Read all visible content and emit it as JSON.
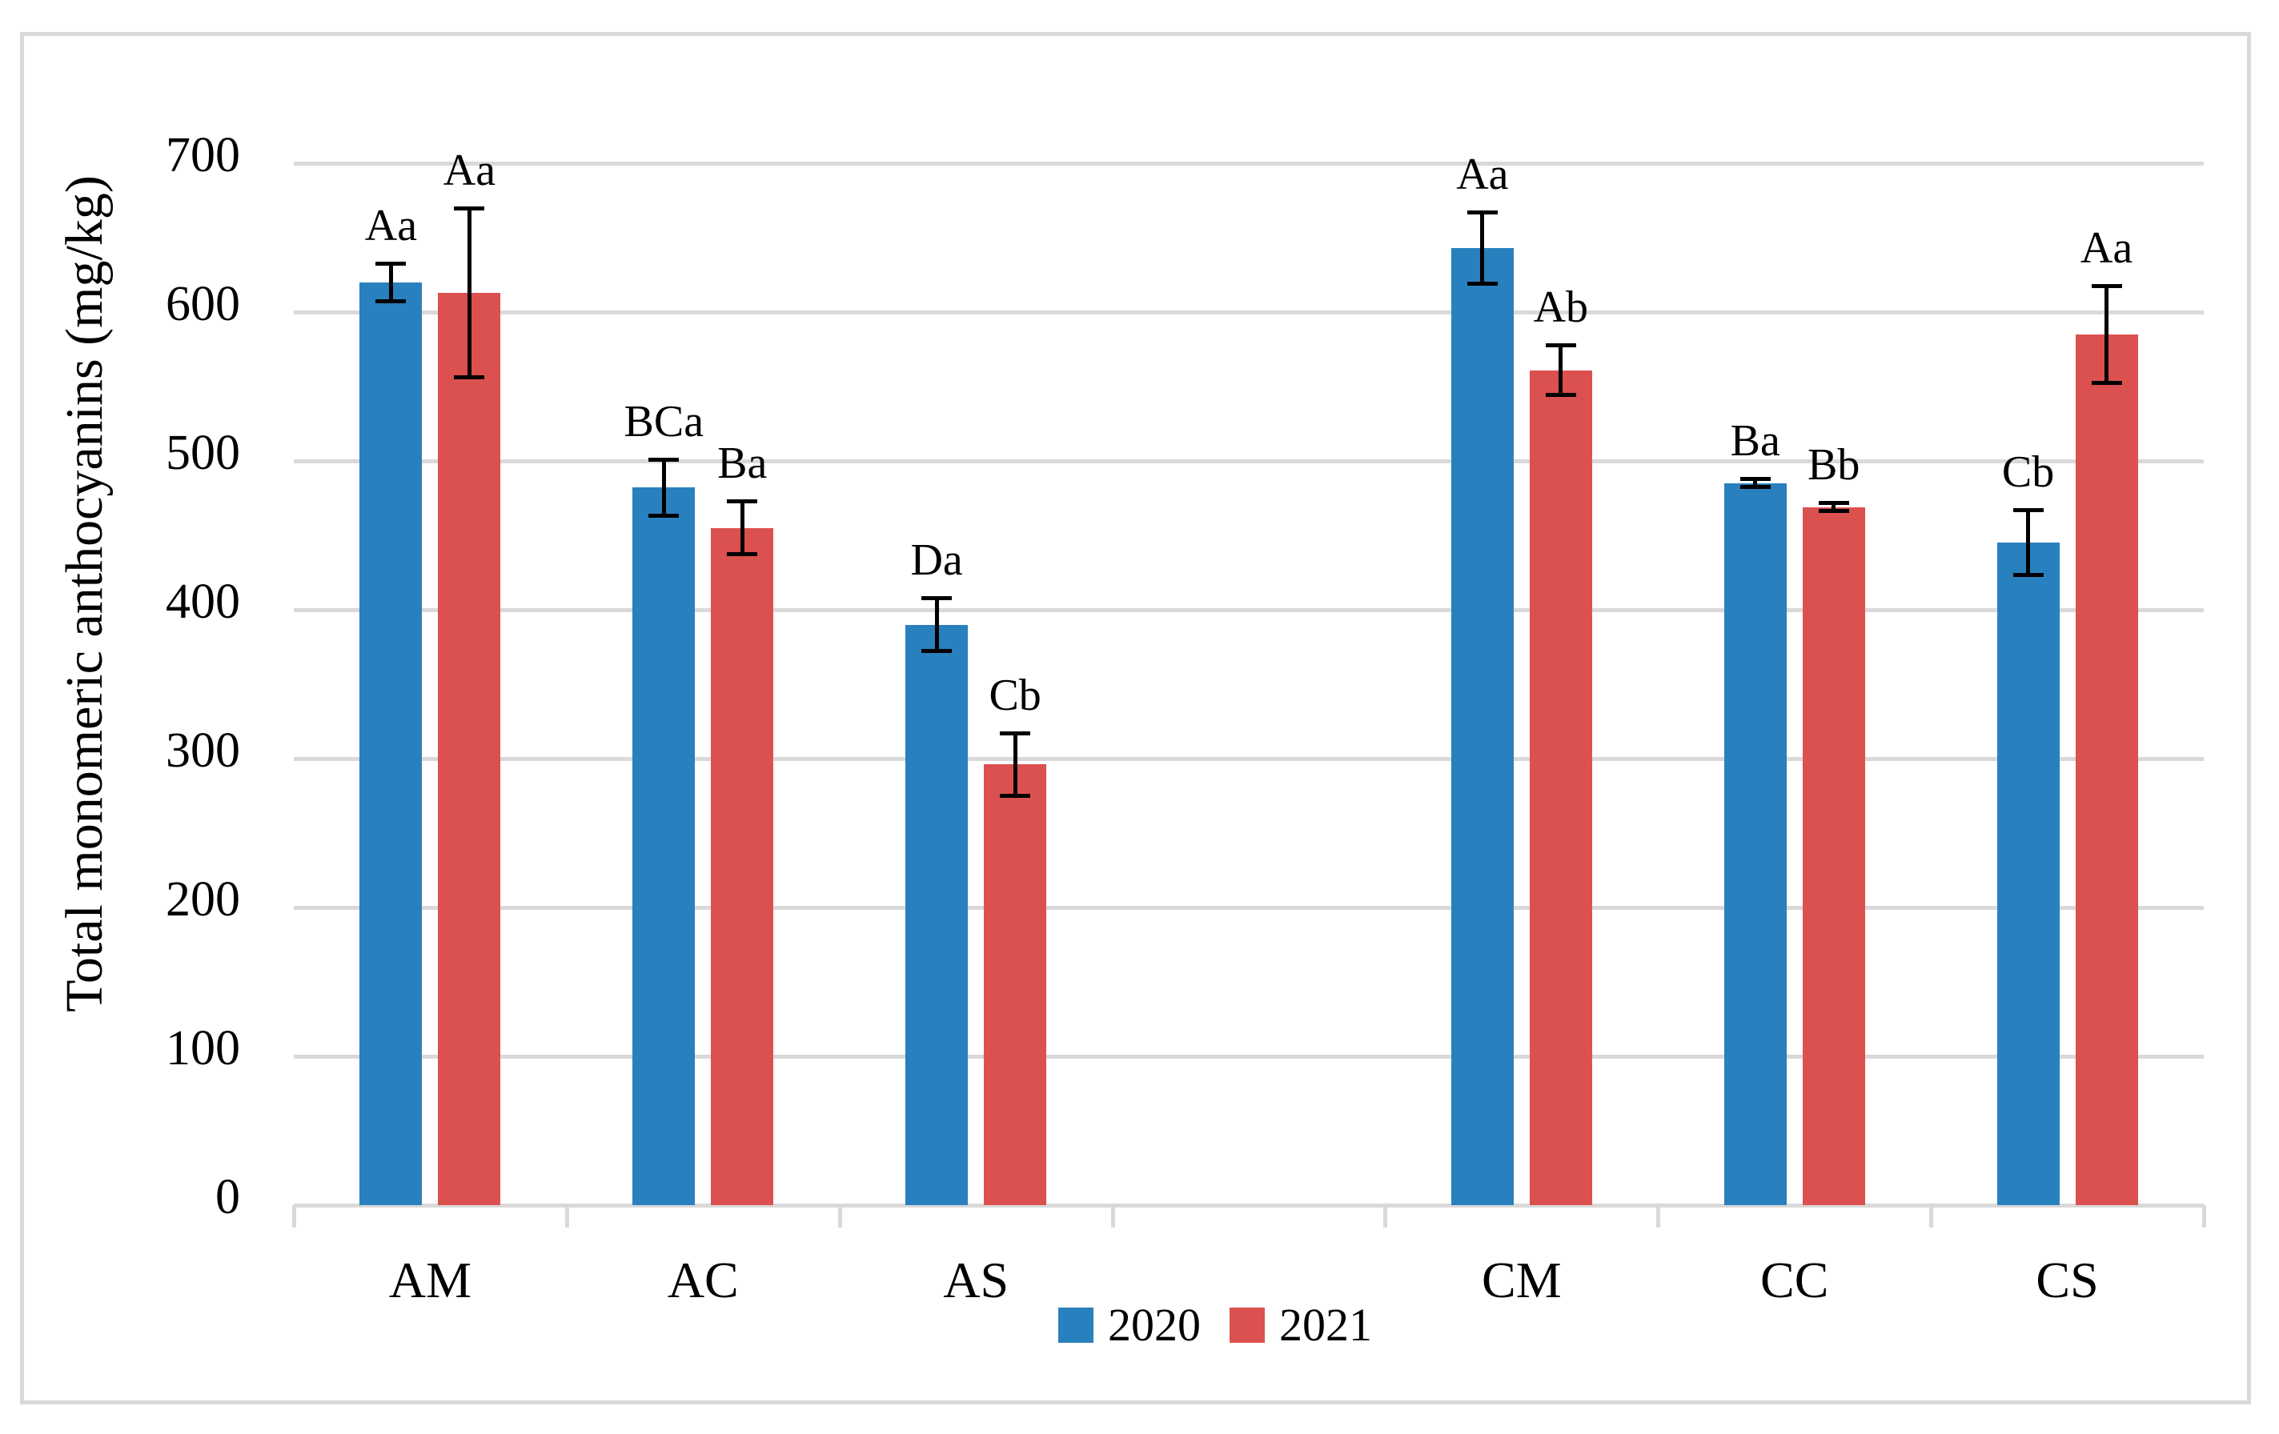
{
  "figure": {
    "background": "#ffffff",
    "frame_border_color": "#d9d9d9"
  },
  "chart_data": {
    "type": "bar",
    "title": "",
    "xlabel": "",
    "ylabel": "Total monomeric anthocyanins (mg/kg)",
    "ylim": [
      0,
      700
    ],
    "yticks": [
      0,
      100,
      200,
      300,
      400,
      500,
      600,
      700
    ],
    "grid": "horizontal",
    "grid_color": "#d9d9d9",
    "error_bar_color": "#000000",
    "legend_position": "bottom-center",
    "categories": [
      "AM",
      "AC",
      "AS",
      "",
      "CM",
      "CC",
      "CS"
    ],
    "series": [
      {
        "name": "2020",
        "color": "#2980be",
        "values": [
          620,
          482,
          390,
          null,
          643,
          485,
          445
        ],
        "errors": [
          13,
          19,
          18,
          null,
          24,
          3,
          22
        ],
        "labels": [
          "Aa",
          "BCa",
          "Da",
          null,
          "Aa",
          "Ba",
          "Cb"
        ]
      },
      {
        "name": "2021",
        "color": "#db514f",
        "values": [
          613,
          455,
          296,
          null,
          561,
          469,
          585
        ],
        "errors": [
          57,
          18,
          21,
          null,
          17,
          3,
          33
        ],
        "labels": [
          "Aa",
          "Ba",
          "Cb",
          null,
          "Ab",
          "Bb",
          "Aa"
        ]
      }
    ]
  },
  "legend": {
    "items": [
      {
        "label": "2020",
        "color": "#2980be"
      },
      {
        "label": "2021",
        "color": "#db514f"
      }
    ]
  }
}
